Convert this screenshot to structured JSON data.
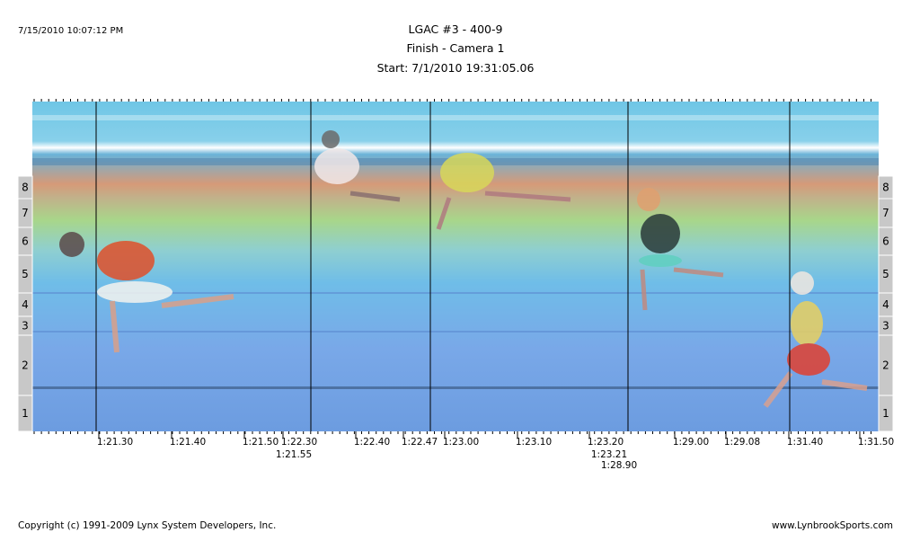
{
  "header": {
    "timestamp": "7/15/2010 10:07:12 PM",
    "title": "LGAC #3 - 400-9",
    "subtitle": "Finish - Camera 1",
    "start": "Start: 7/1/2010 19:31:05.06"
  },
  "lanes": [
    "8",
    "7",
    "6",
    "5",
    "4",
    "3",
    "2",
    "1"
  ],
  "time_labels": [
    "1:21.30",
    "1:21.40",
    "1:21.50",
    "1:22.30",
    "1:21.55",
    "1:22.40",
    "1:22.47",
    "1:23.00",
    "1:23.10",
    "1:23.20",
    "1:23.21",
    "1:28.90",
    "1:29.00",
    "1:29.08",
    "1:31.40",
    "1:31.50"
  ],
  "footer": {
    "copyright": "Copyright (c) 1991-2009 Lynx System Developers, Inc.",
    "website": "www.LynbrookSports.com"
  }
}
